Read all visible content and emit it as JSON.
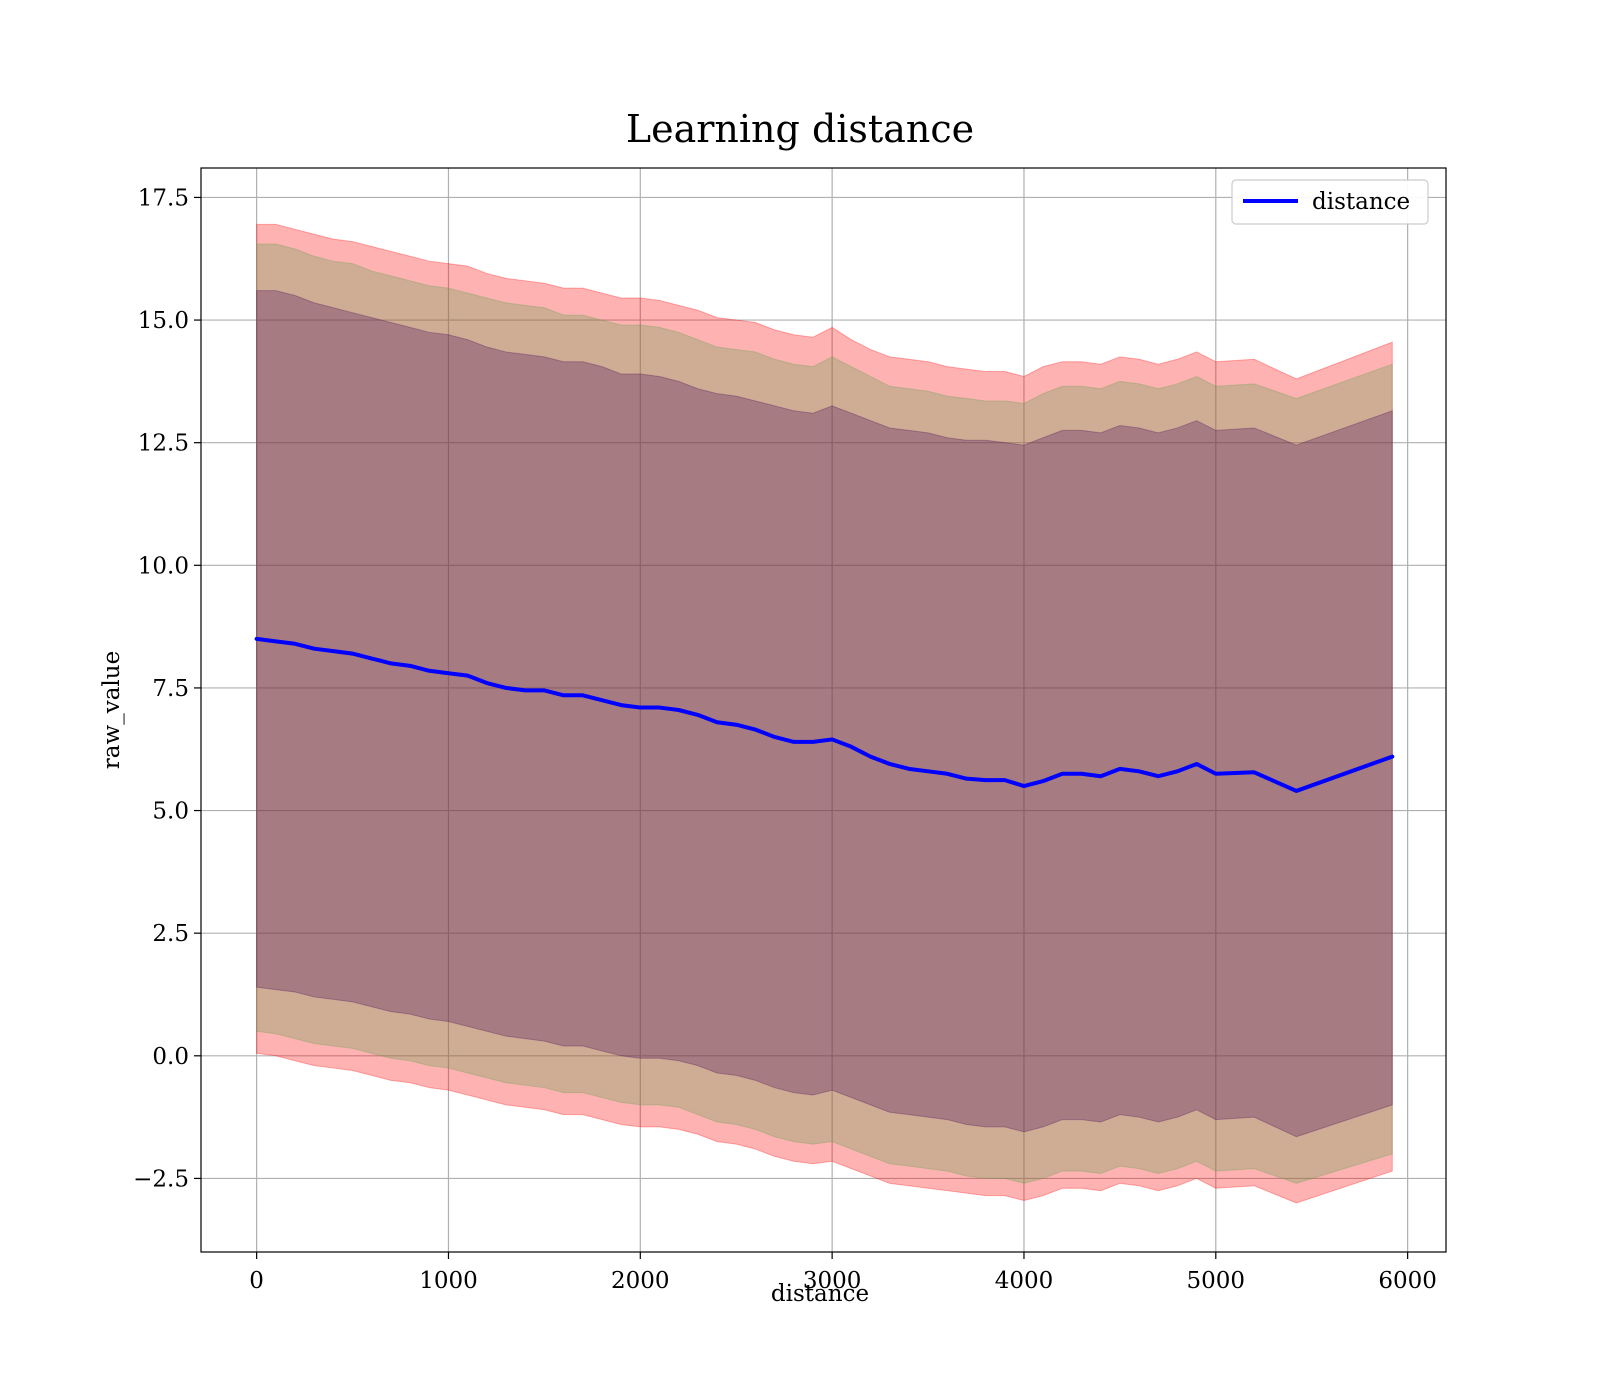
{
  "chart_data": {
    "type": "line",
    "title": "Learning distance",
    "xlabel": "distance",
    "ylabel": "raw_value",
    "xlim": [
      -290,
      6200
    ],
    "ylim": [
      -4.0,
      18.1
    ],
    "xticks": [
      0,
      1000,
      2000,
      3000,
      4000,
      5000,
      6000
    ],
    "xtick_labels": [
      "0",
      "1000",
      "2000",
      "3000",
      "4000",
      "5000",
      "6000"
    ],
    "yticks": [
      -2.5,
      0.0,
      2.5,
      5.0,
      7.5,
      10.0,
      12.5,
      15.0,
      17.5
    ],
    "ytick_labels": [
      "−2.5",
      "0.0",
      "2.5",
      "5.0",
      "7.5",
      "10.0",
      "12.5",
      "15.0",
      "17.5"
    ],
    "grid": true,
    "legend_position": "top-right",
    "legend_line_color": "#0000ff",
    "line_color": "#0000ff",
    "outer_band_color": "#ff0000",
    "middle_band_color": "#5ea14f",
    "inner_band_color": "#4b0a5a",
    "x": [
      0,
      100,
      200,
      300,
      400,
      500,
      600,
      700,
      800,
      900,
      1000,
      1100,
      1200,
      1300,
      1400,
      1500,
      1600,
      1700,
      1800,
      1900,
      2000,
      2100,
      2200,
      2300,
      2400,
      2500,
      2600,
      2700,
      2800,
      2900,
      3000,
      3100,
      3200,
      3300,
      3400,
      3500,
      3600,
      3700,
      3800,
      3900,
      4000,
      4100,
      4200,
      4300,
      4400,
      4500,
      4600,
      4700,
      4800,
      4900,
      5000,
      5200,
      5420,
      5920
    ],
    "series": [
      {
        "name": "distance",
        "values": [
          8.5,
          8.45,
          8.4,
          8.3,
          8.25,
          8.2,
          8.1,
          8.0,
          7.95,
          7.85,
          7.8,
          7.75,
          7.6,
          7.5,
          7.45,
          7.45,
          7.35,
          7.35,
          7.25,
          7.15,
          7.1,
          7.1,
          7.05,
          6.95,
          6.8,
          6.75,
          6.65,
          6.5,
          6.4,
          6.4,
          6.45,
          6.3,
          6.1,
          5.95,
          5.85,
          5.8,
          5.75,
          5.65,
          5.62,
          5.62,
          5.5,
          5.6,
          5.75,
          5.75,
          5.7,
          5.85,
          5.8,
          5.7,
          5.8,
          5.95,
          5.75,
          5.78,
          5.4,
          6.1
        ]
      }
    ],
    "bands": {
      "outer_upper": [
        16.95,
        16.95,
        16.85,
        16.75,
        16.65,
        16.6,
        16.5,
        16.4,
        16.3,
        16.2,
        16.15,
        16.1,
        15.95,
        15.85,
        15.8,
        15.75,
        15.65,
        15.65,
        15.55,
        15.45,
        15.45,
        15.4,
        15.3,
        15.2,
        15.05,
        15.0,
        14.95,
        14.8,
        14.7,
        14.65,
        14.85,
        14.6,
        14.4,
        14.25,
        14.2,
        14.15,
        14.05,
        14.0,
        13.95,
        13.95,
        13.85,
        14.05,
        14.15,
        14.15,
        14.1,
        14.25,
        14.2,
        14.1,
        14.2,
        14.35,
        14.15,
        14.2,
        13.8,
        14.55
      ],
      "middle_upper": [
        16.55,
        16.55,
        16.45,
        16.3,
        16.2,
        16.15,
        16.0,
        15.9,
        15.8,
        15.7,
        15.65,
        15.55,
        15.45,
        15.35,
        15.3,
        15.25,
        15.1,
        15.1,
        15.0,
        14.9,
        14.9,
        14.85,
        14.75,
        14.6,
        14.45,
        14.4,
        14.35,
        14.2,
        14.1,
        14.05,
        14.25,
        14.05,
        13.85,
        13.65,
        13.6,
        13.55,
        13.45,
        13.4,
        13.35,
        13.35,
        13.3,
        13.5,
        13.65,
        13.65,
        13.6,
        13.75,
        13.7,
        13.6,
        13.7,
        13.85,
        13.65,
        13.7,
        13.4,
        14.1
      ],
      "inner_upper": [
        15.6,
        15.6,
        15.5,
        15.35,
        15.25,
        15.15,
        15.05,
        14.95,
        14.85,
        14.75,
        14.7,
        14.6,
        14.45,
        14.35,
        14.3,
        14.25,
        14.15,
        14.15,
        14.05,
        13.9,
        13.9,
        13.85,
        13.75,
        13.6,
        13.5,
        13.45,
        13.35,
        13.25,
        13.15,
        13.1,
        13.25,
        13.1,
        12.95,
        12.8,
        12.75,
        12.7,
        12.6,
        12.55,
        12.55,
        12.5,
        12.45,
        12.6,
        12.75,
        12.75,
        12.7,
        12.85,
        12.8,
        12.7,
        12.8,
        12.95,
        12.75,
        12.8,
        12.45,
        13.15
      ],
      "inner_lower": [
        1.4,
        1.35,
        1.3,
        1.2,
        1.15,
        1.1,
        1.0,
        0.9,
        0.85,
        0.75,
        0.7,
        0.6,
        0.5,
        0.4,
        0.35,
        0.3,
        0.2,
        0.2,
        0.1,
        0.0,
        -0.05,
        -0.05,
        -0.1,
        -0.2,
        -0.35,
        -0.4,
        -0.5,
        -0.65,
        -0.75,
        -0.8,
        -0.7,
        -0.85,
        -1.0,
        -1.15,
        -1.2,
        -1.25,
        -1.3,
        -1.4,
        -1.45,
        -1.45,
        -1.55,
        -1.45,
        -1.3,
        -1.3,
        -1.35,
        -1.2,
        -1.25,
        -1.35,
        -1.25,
        -1.1,
        -1.3,
        -1.25,
        -1.65,
        -1.0
      ],
      "middle_lower": [
        0.5,
        0.45,
        0.35,
        0.25,
        0.2,
        0.15,
        0.05,
        -0.05,
        -0.1,
        -0.2,
        -0.25,
        -0.35,
        -0.45,
        -0.55,
        -0.6,
        -0.65,
        -0.75,
        -0.75,
        -0.85,
        -0.95,
        -1.0,
        -1.0,
        -1.05,
        -1.2,
        -1.35,
        -1.4,
        -1.5,
        -1.65,
        -1.75,
        -1.8,
        -1.75,
        -1.9,
        -2.05,
        -2.2,
        -2.25,
        -2.3,
        -2.35,
        -2.45,
        -2.5,
        -2.5,
        -2.6,
        -2.5,
        -2.35,
        -2.35,
        -2.4,
        -2.25,
        -2.3,
        -2.4,
        -2.3,
        -2.15,
        -2.35,
        -2.3,
        -2.6,
        -2.0
      ],
      "outer_lower": [
        0.05,
        0.0,
        -0.1,
        -0.2,
        -0.25,
        -0.3,
        -0.4,
        -0.5,
        -0.55,
        -0.65,
        -0.7,
        -0.8,
        -0.9,
        -1.0,
        -1.05,
        -1.1,
        -1.2,
        -1.2,
        -1.3,
        -1.4,
        -1.45,
        -1.45,
        -1.5,
        -1.6,
        -1.75,
        -1.8,
        -1.9,
        -2.05,
        -2.15,
        -2.2,
        -2.15,
        -2.3,
        -2.45,
        -2.6,
        -2.65,
        -2.7,
        -2.75,
        -2.8,
        -2.85,
        -2.85,
        -2.95,
        -2.85,
        -2.7,
        -2.7,
        -2.75,
        -2.6,
        -2.65,
        -2.75,
        -2.65,
        -2.5,
        -2.7,
        -2.65,
        -3.0,
        -2.35
      ]
    }
  }
}
